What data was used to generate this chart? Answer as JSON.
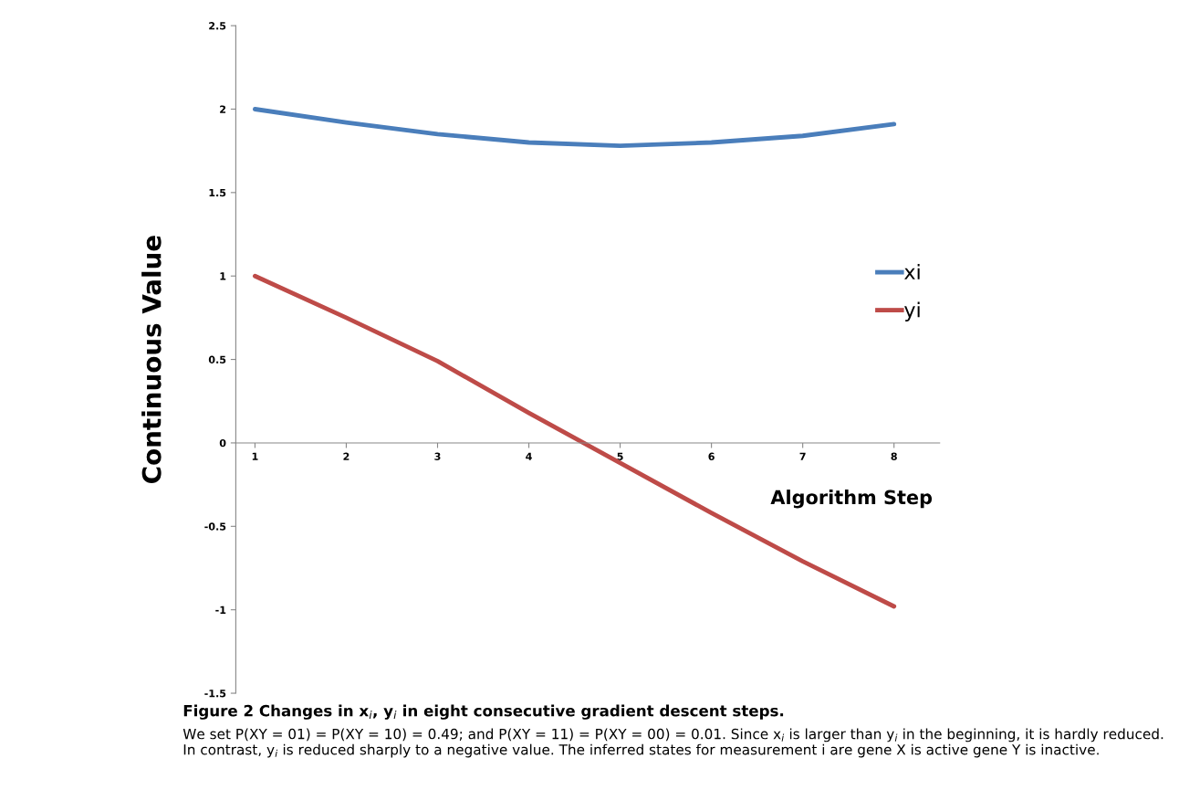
{
  "chart_data": {
    "type": "line",
    "title": "Figure 2 Changes in x$_{i}$, y$_{i}$ in eight consecutive gradient descent steps.",
    "xlabel": "Algorithm Step",
    "ylabel": "Continuous Value",
    "categories": [
      "1",
      "2",
      "3",
      "4",
      "5",
      "6",
      "7",
      "8"
    ],
    "series": [
      {
        "name": "xi",
        "color": "#4a7ebb",
        "values": [
          2.0,
          1.92,
          1.85,
          1.8,
          1.78,
          1.8,
          1.84,
          1.91
        ]
      },
      {
        "name": "yi",
        "color": "#be4b48",
        "values": [
          1.0,
          0.75,
          0.49,
          0.18,
          -0.12,
          -0.42,
          -0.71,
          -0.98
        ]
      }
    ],
    "ylim": [
      -1.5,
      2.5
    ],
    "yticks": [
      {
        "value": -1.5,
        "label": "-1.5"
      },
      {
        "value": -1,
        "label": "-1"
      },
      {
        "value": -0.5,
        "label": "-0.5"
      },
      0,
      0.5,
      1,
      1.5,
      2,
      2.5
    ],
    "grid": false,
    "legend": "right",
    "marker": "none",
    "line_style": "solid",
    "annotations": [
      "We set P(XY = 01) = P(XY = 10) = 0.49; and P(XY = 11) = P(XY = 00) = 0.01. Since x$_{i}$ is larger than y$_{i}$ in the beginning, it is hardly reduced. In contrast, y$_{i}$ is reduced sharply to a negative value. The inferred states for measurement i are gene X is active gene Y is inactive."
    ]
  }
}
